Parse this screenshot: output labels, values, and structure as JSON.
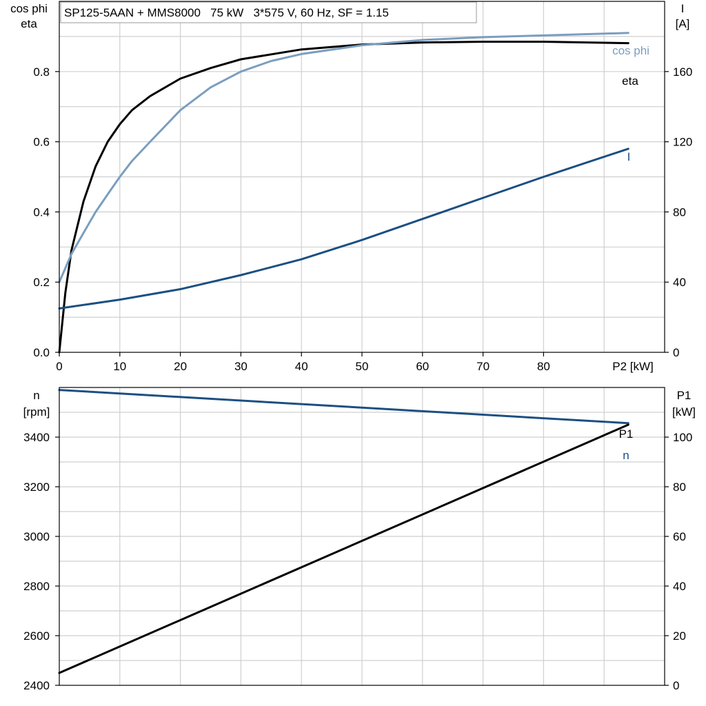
{
  "chart_data": [
    {
      "type": "line",
      "title": "SP125-5AAN + MMS8000   75 kW   3*575 V, 60 Hz, SF = 1.15",
      "xlabel": "P2 [kW]",
      "ylabel_left": [
        "cos phi",
        "eta"
      ],
      "ylabel_right": [
        "I",
        "[A]"
      ],
      "xlim": [
        0,
        100
      ],
      "xticks": [
        0,
        10,
        20,
        30,
        40,
        50,
        60,
        70,
        80
      ],
      "ylim_left": [
        0,
        1.0
      ],
      "yticks_left": [
        "0.0",
        "0.2",
        "0.4",
        "0.6",
        "0.8"
      ],
      "ylim_right": [
        0,
        200
      ],
      "yticks_right": [
        "0",
        "40",
        "80",
        "120",
        "160"
      ],
      "grid": true,
      "series": [
        {
          "name": "eta",
          "axis": "left",
          "color": "#000000",
          "x": [
            0,
            1,
            2,
            4,
            6,
            8,
            10,
            12,
            15,
            20,
            25,
            30,
            40,
            50,
            60,
            70,
            80,
            94
          ],
          "y": [
            0.0,
            0.17,
            0.29,
            0.43,
            0.53,
            0.6,
            0.65,
            0.69,
            0.73,
            0.78,
            0.81,
            0.835,
            0.863,
            0.877,
            0.883,
            0.885,
            0.885,
            0.881
          ]
        },
        {
          "name": "cos phi",
          "axis": "left",
          "color": "#7a9ebf",
          "x": [
            0,
            2,
            4,
            6,
            8,
            10,
            12,
            15,
            20,
            25,
            30,
            35,
            40,
            50,
            60,
            70,
            80,
            94
          ],
          "y": [
            0.2,
            0.28,
            0.34,
            0.4,
            0.45,
            0.5,
            0.545,
            0.6,
            0.69,
            0.755,
            0.8,
            0.83,
            0.85,
            0.875,
            0.89,
            0.898,
            0.903,
            0.91
          ]
        },
        {
          "name": "I",
          "axis": "right",
          "color": "#1b4f82",
          "x": [
            0,
            10,
            20,
            30,
            40,
            50,
            60,
            70,
            80,
            94
          ],
          "y": [
            25,
            30,
            36,
            44,
            53,
            64,
            76,
            88,
            100,
            116
          ]
        }
      ]
    },
    {
      "type": "line",
      "xlim": [
        0,
        100
      ],
      "ylabel_left": [
        "n",
        "[rpm]"
      ],
      "ylabel_right": [
        "P1",
        "[kW]"
      ],
      "ylim_left": [
        2400,
        3600
      ],
      "yticks_left": [
        "2400",
        "2600",
        "2800",
        "3000",
        "3200",
        "3400"
      ],
      "ylim_right": [
        0,
        120
      ],
      "yticks_right": [
        "0",
        "20",
        "40",
        "60",
        "80",
        "100"
      ],
      "grid": true,
      "series": [
        {
          "name": "n",
          "axis": "left",
          "color": "#1b4f82",
          "x": [
            0,
            94
          ],
          "y": [
            3590,
            3456
          ]
        },
        {
          "name": "P1",
          "axis": "right",
          "color": "#000000",
          "x": [
            0,
            94
          ],
          "y": [
            5,
            105
          ]
        }
      ]
    }
  ]
}
